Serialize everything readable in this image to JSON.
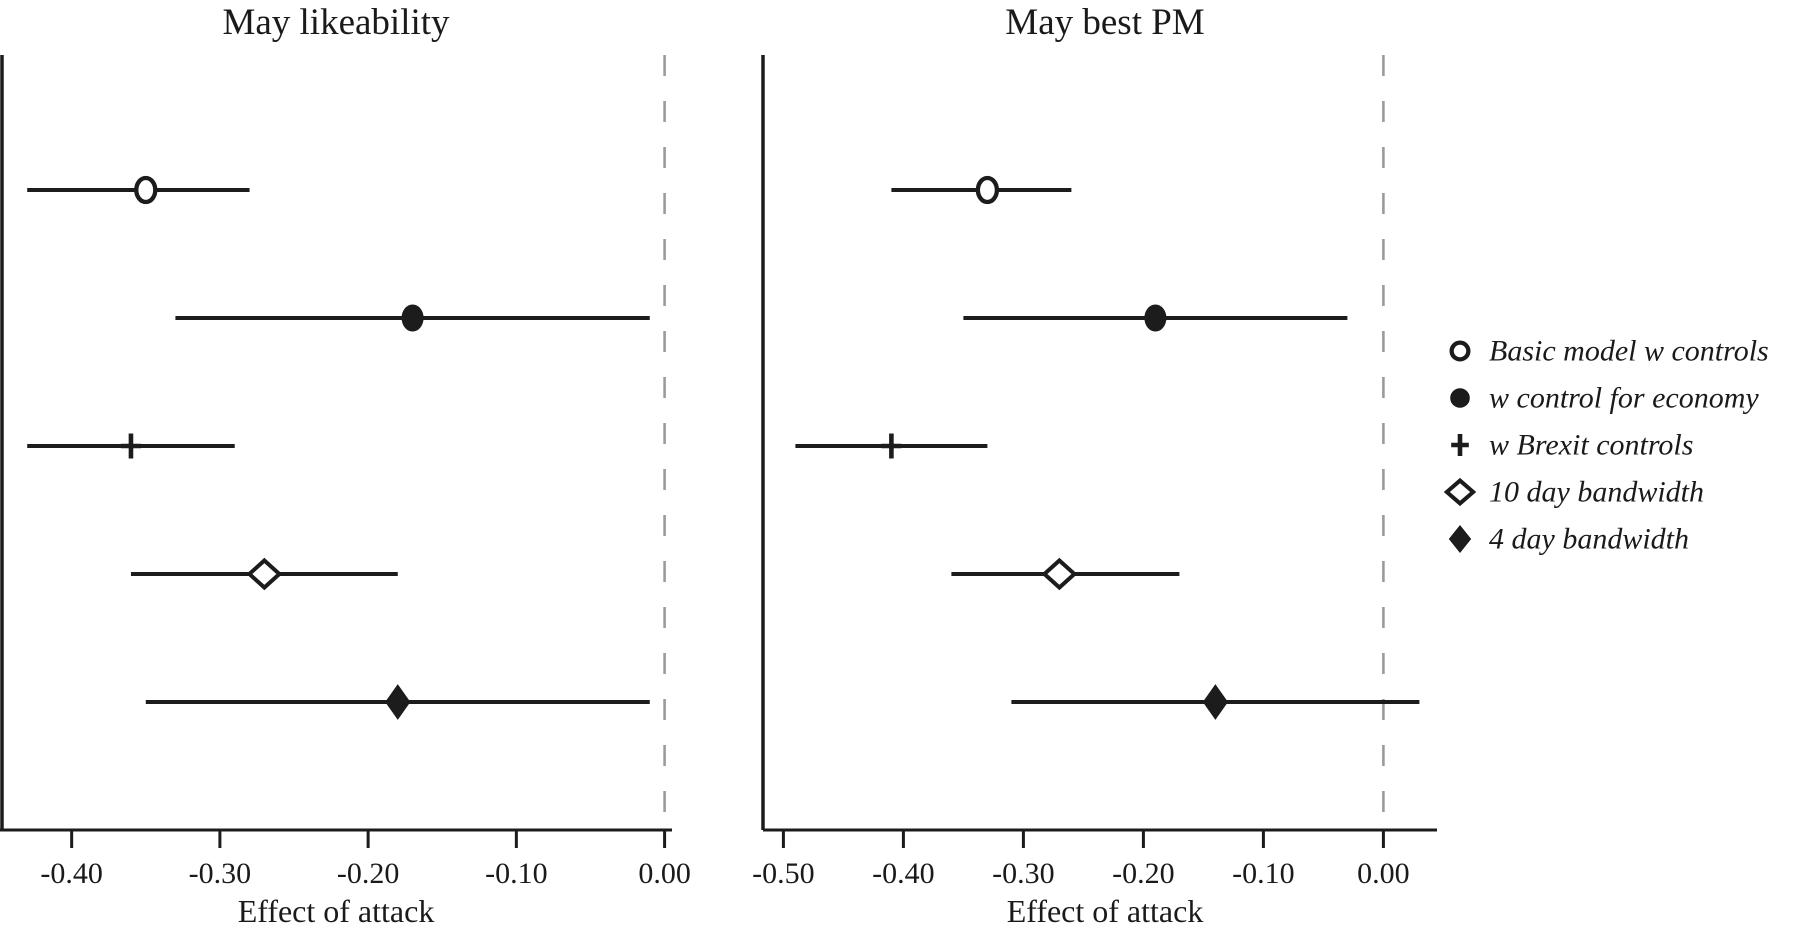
{
  "chart_data": {
    "type": "scatter",
    "subtype": "coefficient-forest-plot",
    "description": "Two-panel coefficient plot of regression-discontinuity estimates with horizontal confidence intervals and a dashed reference line at zero",
    "panels": [
      {
        "title": "May likeability",
        "xlabel": "Effect of attack",
        "xlim": [
          -0.447,
          0.005
        ],
        "zero_reference": 0.0,
        "xticks": [
          {
            "value": -0.4,
            "label": "-0.40"
          },
          {
            "value": -0.3,
            "label": "-0.30"
          },
          {
            "value": -0.2,
            "label": "-0.20"
          },
          {
            "value": -0.1,
            "label": "-0.10"
          },
          {
            "value": 0.0,
            "label": "0.00"
          }
        ],
        "estimates": [
          {
            "model": "Basic model w controls",
            "marker": "circle-open",
            "value": -0.35,
            "ci_low": -0.43,
            "ci_high": -0.28
          },
          {
            "model": "w control for economy",
            "marker": "circle-filled",
            "value": -0.17,
            "ci_low": -0.33,
            "ci_high": -0.01
          },
          {
            "model": "w Brexit controls",
            "marker": "plus",
            "value": -0.36,
            "ci_low": -0.43,
            "ci_high": -0.29
          },
          {
            "model": "10 day bandwidth",
            "marker": "diamond-open",
            "value": -0.27,
            "ci_low": -0.36,
            "ci_high": -0.18
          },
          {
            "model": "4 day bandwidth",
            "marker": "diamond-filled",
            "value": -0.18,
            "ci_low": -0.35,
            "ci_high": -0.01
          }
        ]
      },
      {
        "title": "May best PM",
        "xlabel": "Effect of attack",
        "xlim": [
          -0.517,
          0.053
        ],
        "zero_reference": 0.0,
        "xticks": [
          {
            "value": -0.5,
            "label": "-0.50"
          },
          {
            "value": -0.4,
            "label": "-0.40"
          },
          {
            "value": -0.3,
            "label": "-0.30"
          },
          {
            "value": -0.2,
            "label": "-0.20"
          },
          {
            "value": -0.1,
            "label": "-0.10"
          },
          {
            "value": 0.0,
            "label": "0.00"
          }
        ],
        "estimates": [
          {
            "model": "Basic model w controls",
            "marker": "circle-open",
            "value": -0.33,
            "ci_low": -0.41,
            "ci_high": -0.26
          },
          {
            "model": "w control for economy",
            "marker": "circle-filled",
            "value": -0.19,
            "ci_low": -0.35,
            "ci_high": -0.03
          },
          {
            "model": "w Brexit controls",
            "marker": "plus",
            "value": -0.41,
            "ci_low": -0.49,
            "ci_high": -0.33
          },
          {
            "model": "10 day bandwidth",
            "marker": "diamond-open",
            "value": -0.27,
            "ci_low": -0.36,
            "ci_high": -0.17
          },
          {
            "model": "4 day bandwidth",
            "marker": "diamond-filled",
            "value": -0.14,
            "ci_low": -0.31,
            "ci_high": 0.03
          }
        ]
      }
    ],
    "legend": {
      "position": "right-center",
      "entries": [
        {
          "marker": "circle-open",
          "label": "Basic model w controls"
        },
        {
          "marker": "circle-filled",
          "label": "w control for economy"
        },
        {
          "marker": "plus",
          "label": "w Brexit controls"
        },
        {
          "marker": "diamond-open",
          "label": "10 day bandwidth"
        },
        {
          "marker": "diamond-filled",
          "label": "4 day bandwidth"
        }
      ]
    },
    "layout": {
      "grid": false,
      "background": "#ffffff"
    },
    "colors": {
      "marker": "#1c1c1c",
      "ci_line": "#1c1c1c",
      "axis": "#1c1c1c",
      "zero_line": "#9b9b9b",
      "text": "#1a1a1a"
    }
  }
}
